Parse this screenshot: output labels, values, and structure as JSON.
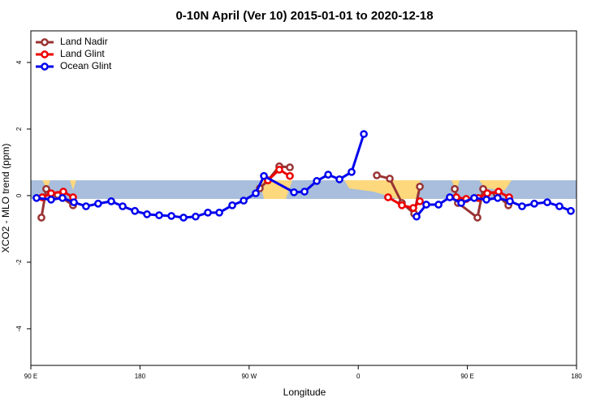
{
  "chart_data": {
    "type": "line",
    "title": "0-10N April (Ver 10)   2015-01-01 to 2020-12-18",
    "xlabel": "Longitude",
    "ylabel": "XCO2 - MLO trend (ppm)",
    "xlim": [
      90,
      540
    ],
    "ylim": [
      -5.1,
      4.95
    ],
    "xticks": [
      {
        "value": 90,
        "label": "90 E"
      },
      180,
      {
        "value": 270,
        "label": "90 W"
      },
      {
        "value": 360,
        "label": "0"
      },
      {
        "value": 450,
        "label": "90 E"
      },
      {
        "value": 540,
        "label": "180"
      }
    ],
    "yticks": [
      -4,
      -2,
      0,
      2,
      4
    ],
    "legend": "top-left",
    "series": [
      {
        "name": "Land Nadir",
        "color": "#993333",
        "x": [
          98.7,
          102.7,
          112.1,
          124.8,
          null,
          278.8,
          285.5,
          294.9,
          303.6,
          null,
          375.3,
          386,
          396,
          406.1,
          410.8,
          null,
          439.6,
          442.2,
          458.3,
          463,
          474.4,
          483.8
        ],
        "values": [
          -0.66,
          0.2,
          0.02,
          -0.29,
          null,
          0.22,
          0.46,
          0.88,
          0.85,
          null,
          0.61,
          0.51,
          -0.22,
          -0.54,
          0.27,
          null,
          0.2,
          -0.22,
          -0.66,
          0.2,
          0.02,
          -0.29
        ]
      },
      {
        "name": "Land Glint",
        "color": "#ee0000",
        "x": [
          99.4,
          106.7,
          116.8,
          124.8,
          null,
          285.5,
          294.9,
          303.6,
          null,
          384.6,
          396,
          405.4,
          410.8,
          null,
          440.9,
          449,
          459,
          466.4,
          475.7,
          484.4
        ],
        "values": [
          -0.05,
          0.07,
          0.12,
          -0.05,
          null,
          0.46,
          0.78,
          0.59,
          null,
          -0.05,
          -0.29,
          -0.37,
          -0.17,
          null,
          -0.05,
          -0.1,
          -0.07,
          0.07,
          0.12,
          -0.05
        ]
      },
      {
        "name": "Ocean Glint",
        "color": "#0000ee",
        "x": [
          94.7,
          106.7,
          116.1,
          125.5,
          135.5,
          145.5,
          156.3,
          165.7,
          175.8,
          185.8,
          195.8,
          205.9,
          215.9,
          225.9,
          236,
          245.4,
          256.1,
          265.5,
          275.5,
          282.2,
          307,
          315.7,
          325.8,
          335.2,
          344.5,
          354.5,
          364.6,
          null,
          408.1,
          416.1,
          426.2,
          435.5,
          444.9,
          455.6,
          465.7,
          475,
          485.1,
          495.1,
          505.2,
          515.9,
          525.9,
          535.3
        ],
        "values": [
          -0.07,
          -0.12,
          -0.07,
          -0.2,
          -0.32,
          -0.24,
          -0.17,
          -0.32,
          -0.46,
          -0.56,
          -0.59,
          -0.61,
          -0.66,
          -0.63,
          -0.51,
          -0.51,
          -0.29,
          -0.15,
          0.07,
          0.59,
          0.1,
          0.12,
          0.44,
          0.63,
          0.49,
          0.71,
          1.85,
          null,
          -0.63,
          -0.27,
          -0.27,
          -0.05,
          -0.22,
          -0.07,
          -0.12,
          -0.07,
          -0.17,
          -0.32,
          -0.24,
          -0.2,
          -0.32,
          -0.46
        ]
      }
    ]
  }
}
